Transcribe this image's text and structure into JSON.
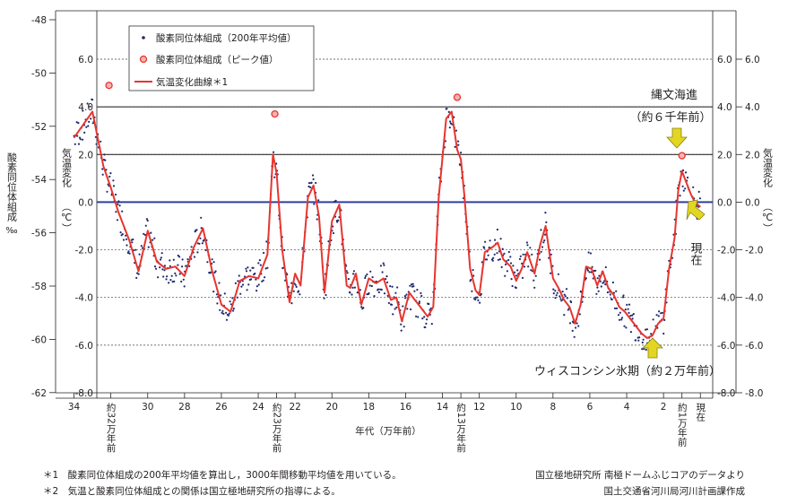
{
  "chart_data": {
    "type": "line",
    "xlabel": "年代（万年前）",
    "ylabel_left": "酸素同位体組成",
    "ylabel_left_unit": "‰",
    "ylabel_right": "気温変化",
    "ylabel_right_unit": "（℃）",
    "xlim": [
      35,
      -0.6
    ],
    "ylim_temp": [
      -8.0,
      6.0
    ],
    "ylim_oxygen": [
      -62,
      -48
    ],
    "left_ticks": [
      "-48",
      "-50",
      "-52",
      "-54",
      "-56",
      "-58",
      "-60",
      "-62"
    ],
    "right_ticks": [
      "6.0",
      "4.0",
      "2.0",
      "0.0",
      "-2.0",
      "-4.0",
      "-6.0",
      "-8.0"
    ],
    "x_ticks": [
      "34",
      "30",
      "28",
      "26",
      "24",
      "22",
      "20",
      "18",
      "16",
      "14",
      "12",
      "10",
      "8",
      "6",
      "4",
      "2"
    ],
    "x_special_ticks": [
      {
        "x": 32,
        "label": "約32万年前"
      },
      {
        "x": 23,
        "label": "約23万年前"
      },
      {
        "x": 13,
        "label": "約13万年前"
      },
      {
        "x": 1,
        "label": "約1万年前"
      },
      {
        "x": 0,
        "label": "現在"
      }
    ],
    "reference_lines": [
      4.0,
      2.0,
      0.0
    ],
    "legend": {
      "placement": "top-left",
      "entries": [
        {
          "label": "酸素同位体組成（200年平均値）",
          "marker": "dot"
        },
        {
          "label": "酸素同位体組成（ピーク値）",
          "marker": "circle"
        },
        {
          "label": "気温変化曲線＊1",
          "marker": "line"
        }
      ]
    },
    "colors": {
      "curve": "#e8352e",
      "dots": "#1e2a6e",
      "peak": "#e8352e",
      "zero_line": "#2d3fa0",
      "arrow": "#e3d623"
    },
    "series": [
      {
        "name": "気温変化曲線＊1",
        "x": [
          34,
          33,
          32.4,
          32,
          31.6,
          31,
          30.5,
          30,
          29.5,
          29,
          28.5,
          28,
          27.5,
          27,
          26.5,
          26,
          25.5,
          25,
          24.5,
          24,
          23.5,
          23.2,
          23,
          22.7,
          22.3,
          22,
          21.7,
          21.3,
          21,
          20.7,
          20.4,
          20,
          19.6,
          19.2,
          19,
          18.7,
          18.4,
          18,
          17.6,
          17.2,
          16.8,
          16.5,
          16.2,
          15.8,
          15.5,
          15.2,
          14.8,
          14.5,
          14.2,
          13.8,
          13.5,
          13.2,
          13,
          12.8,
          12.5,
          12.2,
          12,
          11.7,
          11.3,
          11,
          10.7,
          10.3,
          10,
          9.7,
          9.4,
          9,
          8.7,
          8.4,
          8,
          7.7,
          7.4,
          7.1,
          6.8,
          6.5,
          6.2,
          5.9,
          5.6,
          5.3,
          5,
          4.7,
          4.4,
          4.1,
          3.8,
          3.5,
          3.2,
          2.9,
          2.6,
          2.3,
          2,
          1.7,
          1.4,
          1.2,
          1,
          0.8,
          0.5,
          0.3,
          0
        ],
        "y": [
          2.7,
          3.8,
          1.5,
          0.6,
          -0.4,
          -1.6,
          -2.9,
          -1.2,
          -2.5,
          -2.8,
          -2.7,
          -3.1,
          -1.9,
          -1.1,
          -2.9,
          -4.3,
          -4.6,
          -3.3,
          -3.1,
          -3.2,
          -2.2,
          2.0,
          1.2,
          -2.0,
          -4.2,
          -3.0,
          -3.5,
          0.2,
          0.7,
          -0.6,
          -3.8,
          -0.8,
          -0.1,
          -3.5,
          -3.6,
          -3.0,
          -4.3,
          -3.2,
          -3.4,
          -3.2,
          -4.1,
          -4.0,
          -5.0,
          -3.8,
          -4.1,
          -4.4,
          -4.8,
          -4.4,
          0.2,
          3.5,
          3.8,
          2.2,
          1.8,
          0.2,
          -2.8,
          -3.7,
          -3.9,
          -2.1,
          -1.9,
          -1.7,
          -2.4,
          -2.7,
          -3.3,
          -2.8,
          -2.1,
          -3.0,
          -1.8,
          -1.0,
          -3.2,
          -3.6,
          -4.1,
          -4.4,
          -5.1,
          -4.3,
          -2.7,
          -2.8,
          -3.5,
          -2.9,
          -3.6,
          -3.9,
          -4.4,
          -4.6,
          -4.9,
          -5.2,
          -5.5,
          -5.7,
          -5.6,
          -5.1,
          -4.9,
          -2.8,
          -1.5,
          0.5,
          1.3,
          0.9,
          0.3,
          0.0,
          -0.2
        ]
      },
      {
        "name": "酸素同位体組成（ピーク値）",
        "marker": "circle",
        "x": [
          32.1,
          23.1,
          13.2,
          1.0
        ],
        "y": [
          4.9,
          3.7,
          4.4,
          1.95
        ]
      }
    ]
  },
  "annotations": {
    "jomon_line1": "縄文海進",
    "jomon_line2": "（約６千年前）",
    "wisconsin": "ウィスコンシン氷期（約２万年前）",
    "present": "現在"
  },
  "footnotes": {
    "note1": "＊1　酸素同位体組成の200年平均値を算出し，3000年間移動平均値を用いている。",
    "note2": "＊2　気温と酸素同位体組成との関係は国立極地研究所の指導による。",
    "source1": "国立極地研究所  南極ドームふじコアのデータより",
    "source2": "国土交通省河川局河川計画課作成"
  }
}
